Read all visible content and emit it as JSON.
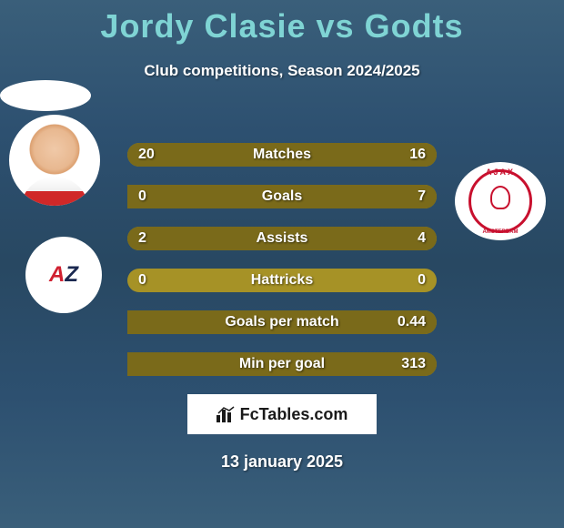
{
  "header": {
    "title": "Jordy Clasie vs Godts",
    "subtitle": "Club competitions, Season 2024/2025",
    "title_color": "#7fd4d4"
  },
  "stats": {
    "bar_color_base": "#a69226",
    "bar_color_fill": "#7a6a1a",
    "rows": [
      {
        "label": "Matches",
        "left_val": "20",
        "right_val": "16",
        "left_pct": 55.5,
        "right_pct": 44.5
      },
      {
        "label": "Goals",
        "left_val": "0",
        "right_val": "7",
        "left_pct": 0,
        "right_pct": 100
      },
      {
        "label": "Assists",
        "left_val": "2",
        "right_val": "4",
        "left_pct": 33.3,
        "right_pct": 66.7
      },
      {
        "label": "Hattricks",
        "left_val": "0",
        "right_val": "0",
        "left_pct": 0,
        "right_pct": 0
      },
      {
        "label": "Goals per match",
        "left_val": "",
        "right_val": "0.44",
        "left_pct": 0,
        "right_pct": 100
      },
      {
        "label": "Min per goal",
        "left_val": "",
        "right_val": "313",
        "left_pct": 0,
        "right_pct": 100
      }
    ]
  },
  "player_left": {
    "name": "Jordy Clasie",
    "club": "AZ",
    "club_text_a": "A",
    "club_text_z": "Z"
  },
  "player_right": {
    "name": "Godts",
    "club": "Ajax",
    "ajax_top": "AJAX",
    "ajax_bottom": "AMSTERDAM"
  },
  "footer": {
    "brand": "FcTables.com",
    "date": "13 january 2025"
  },
  "colors": {
    "background_grad_top": "#3a5f7a",
    "background_grad_mid": "#284862",
    "text_white": "#ffffff",
    "ajax_red": "#c8102e",
    "az_red": "#d02030",
    "az_blue": "#1a2850"
  }
}
